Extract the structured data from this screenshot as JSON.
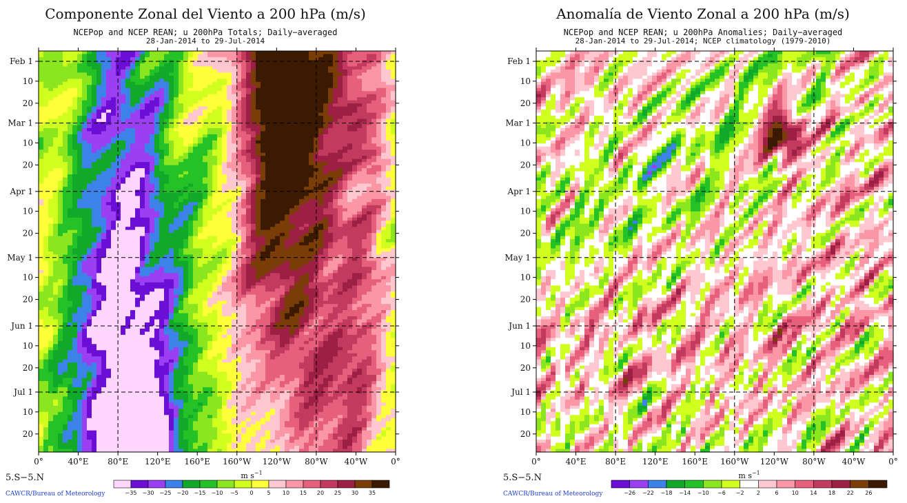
{
  "colors": {
    "totals_palette": [
      "#ffd6ff",
      "#6b0fd6",
      "#9a3ff2",
      "#3c82e8",
      "#12a82a",
      "#24c226",
      "#8ce61f",
      "#d0ff1f",
      "#ffff3a",
      "#ffc8d0",
      "#fa96a6",
      "#e65f7c",
      "#c23a5e",
      "#9c1f44",
      "#7a3d08",
      "#3c1a02"
    ],
    "anomaly_palette": [
      "#6b0fd6",
      "#9a3ff2",
      "#3c82e8",
      "#12a82a",
      "#24c226",
      "#8ce61f",
      "#d0ff1f",
      "#ffffff",
      "#ffc8d0",
      "#fa96a6",
      "#e65f7c",
      "#c23a5e",
      "#9c1f44",
      "#7a3d08",
      "#3c1a02"
    ]
  },
  "chart_data": [
    {
      "type": "heatmap",
      "title": "Componente Zonal del Viento a 200 hPa (m/s)",
      "subtitle_line1": "NCEPop and NCEP REAN; u 200hPa Totals; Daily−averaged",
      "subtitle_line2": "28-Jan-2014 to 29-Jul-2014",
      "x_ticks": [
        "0°",
        "40°E",
        "80°E",
        "120°E",
        "160°E",
        "160°W",
        "120°W",
        "80°W",
        "40°W",
        "0°"
      ],
      "y_ticks": [
        "Feb 1",
        "10",
        "20",
        "Mar 1",
        "10",
        "20",
        "Apr 1",
        "10",
        "20",
        "May 1",
        "10",
        "20",
        "Jun 1",
        "10",
        "20",
        "Jul 1",
        "10",
        "20"
      ],
      "colorbar_unit": "m s",
      "colorbar_unit_exp": "−1",
      "colorbar_levels": [
        "−35",
        "−30",
        "−25",
        "−20",
        "−15",
        "−10",
        "−5",
        "0",
        "5",
        "10",
        "15",
        "20",
        "25",
        "30",
        "35"
      ],
      "latitude_band": "5.S−5.N",
      "credit": "CAWCR/Bureau of Meteorology",
      "xlim": [
        0,
        360
      ],
      "time_range": [
        "28-Jan-2014",
        "29-Jul-2014"
      ],
      "grid": true
    },
    {
      "type": "heatmap",
      "title": "Anomalía de Viento Zonal a 200 hPa (m/s)",
      "subtitle_line1": "NCEPop and NCEP REAN; u 200hPa Anomalies; Daily−averaged",
      "subtitle_line2": "28-Jan-2014 to 29-Jul-2014; NCEP climatology (1979-2010)",
      "x_ticks": [
        "0°",
        "40°E",
        "80°E",
        "120°E",
        "160°E",
        "160°W",
        "120°W",
        "80°W",
        "40°W",
        "0°"
      ],
      "y_ticks": [
        "Feb 1",
        "10",
        "20",
        "Mar 1",
        "10",
        "20",
        "Apr 1",
        "10",
        "20",
        "May 1",
        "10",
        "20",
        "Jun 1",
        "10",
        "20",
        "Jul 1",
        "10",
        "20"
      ],
      "colorbar_unit": "m s",
      "colorbar_unit_exp": "−1",
      "colorbar_levels": [
        "−26",
        "−22",
        "−18",
        "−14",
        "−10",
        "−6",
        "−2",
        "2",
        "6",
        "10",
        "14",
        "18",
        "22",
        "26"
      ],
      "latitude_band": "5.S−5.N",
      "credit": "CAWCR/Bureau of Meteorology",
      "xlim": [
        0,
        360
      ],
      "time_range": [
        "28-Jan-2014",
        "29-Jul-2014"
      ],
      "grid": true
    }
  ]
}
